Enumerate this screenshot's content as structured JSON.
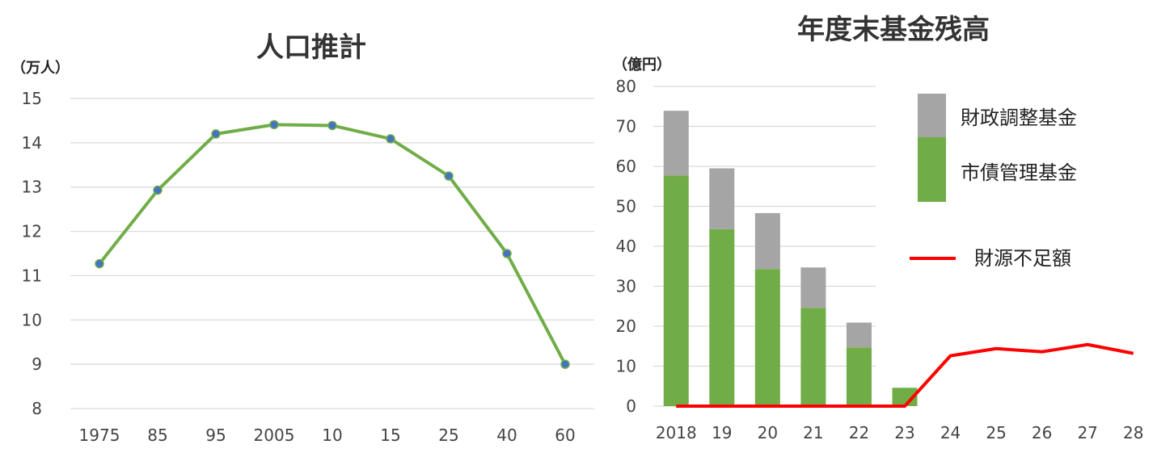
{
  "chart_data": [
    {
      "type": "line",
      "title": "人口推計",
      "unit_label": "（万人）",
      "x": [
        "1975",
        "85",
        "95",
        "2005",
        "10",
        "15",
        "25",
        "40",
        "60"
      ],
      "series": [
        {
          "values": [
            11.27,
            12.93,
            14.2,
            14.41,
            14.39,
            14.09,
            13.25,
            11.5,
            9.0
          ]
        }
      ],
      "ylim": [
        8,
        15
      ],
      "yticks": [
        "8",
        "9",
        "10",
        "11",
        "12",
        "13",
        "14",
        "15"
      ],
      "grid": true,
      "colors": {
        "line": "#70ad47",
        "marker": "#4472c4"
      }
    },
    {
      "type": "bar",
      "stacked": true,
      "title": "年度末基金残高",
      "unit_label": "（億円）",
      "categories": [
        "2018",
        "19",
        "20",
        "21",
        "22",
        "23",
        "24",
        "25",
        "26",
        "27",
        "28"
      ],
      "series": [
        {
          "name": "市債管理基金",
          "kind": "bar",
          "values": [
            57.7,
            44.3,
            34.3,
            24.6,
            14.7,
            4.6,
            null,
            null,
            null,
            null,
            null
          ]
        },
        {
          "name": "財政調整基金",
          "kind": "bar",
          "values": [
            16.2,
            15.2,
            14.0,
            10.1,
            6.2,
            0,
            null,
            null,
            null,
            null,
            null
          ]
        },
        {
          "name": "財源不足額",
          "kind": "line",
          "values": [
            0,
            0,
            0,
            0,
            0,
            0,
            12.6,
            14.4,
            13.6,
            15.4,
            13.2
          ]
        }
      ],
      "ylim": [
        0,
        80
      ],
      "yticks": [
        "0",
        "10",
        "20",
        "30",
        "40",
        "50",
        "60",
        "70",
        "80"
      ],
      "grid": true,
      "legend": "top-right",
      "colors": {
        "市債管理基金": "#70ad47",
        "財政調整基金": "#a5a5a5",
        "財源不足額": "#ff0000"
      }
    }
  ]
}
